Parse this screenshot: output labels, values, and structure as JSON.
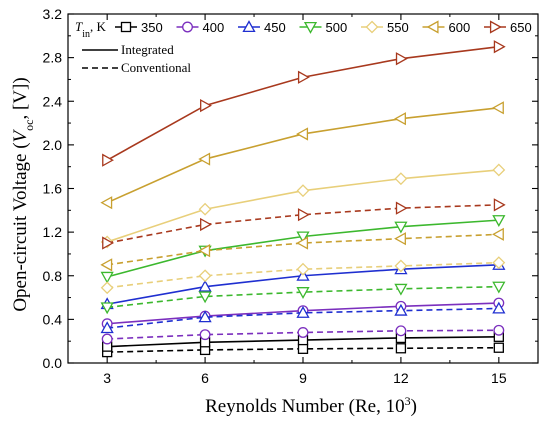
{
  "chart_data": {
    "type": "line",
    "x": [
      3,
      6,
      9,
      12,
      15
    ],
    "x_ticks": [
      "3",
      "6",
      "9",
      "12",
      "15"
    ],
    "y_ticks": [
      "0.0",
      "0.4",
      "0.8",
      "1.2",
      "1.6",
      "2.0",
      "2.4",
      "2.8",
      "3.2"
    ],
    "xlim": [
      1.8,
      16.2
    ],
    "ylim": [
      0,
      3.2
    ],
    "xlabel": {
      "main": "Reynolds Number (Re, 10",
      "sup": "3",
      "end": ")"
    },
    "ylabel": {
      "main": "Open-circuit Voltage (",
      "italic": "V",
      "sub": "oc",
      "end": ", [V])"
    },
    "grid": false,
    "legend_title": {
      "italic": "T",
      "sub": "in",
      "end": ", K"
    },
    "legend_placement": "top",
    "line_styles": [
      {
        "name": "Integrated",
        "dash": "solid"
      },
      {
        "name": "Conventional",
        "dash": "dashed"
      }
    ],
    "series": [
      {
        "name": "350",
        "color": "#000000",
        "marker": "square",
        "integrated": [
          0.15,
          0.19,
          0.21,
          0.23,
          0.24
        ],
        "conventional": [
          0.1,
          0.12,
          0.13,
          0.135,
          0.14
        ]
      },
      {
        "name": "400",
        "color": "#7b2fbe",
        "marker": "circle",
        "integrated": [
          0.36,
          0.43,
          0.48,
          0.52,
          0.55
        ],
        "conventional": [
          0.22,
          0.26,
          0.28,
          0.295,
          0.3
        ]
      },
      {
        "name": "450",
        "color": "#1f2fd0",
        "marker": "triangle-up",
        "integrated": [
          0.54,
          0.7,
          0.8,
          0.86,
          0.9
        ],
        "conventional": [
          0.32,
          0.42,
          0.46,
          0.48,
          0.5
        ]
      },
      {
        "name": "500",
        "color": "#3cb82e",
        "marker": "triangle-down",
        "integrated": [
          0.79,
          1.03,
          1.16,
          1.25,
          1.31
        ],
        "conventional": [
          0.51,
          0.61,
          0.65,
          0.68,
          0.7
        ]
      },
      {
        "name": "550",
        "color": "#e8cf7a",
        "marker": "diamond",
        "integrated": [
          1.11,
          1.41,
          1.58,
          1.69,
          1.77
        ],
        "conventional": [
          0.69,
          0.8,
          0.86,
          0.89,
          0.92
        ]
      },
      {
        "name": "600",
        "color": "#c8a030",
        "marker": "triangle-left",
        "integrated": [
          1.47,
          1.87,
          2.1,
          2.24,
          2.34
        ],
        "conventional": [
          0.9,
          1.03,
          1.1,
          1.14,
          1.18
        ]
      },
      {
        "name": "650",
        "color": "#a8391e",
        "marker": "triangle-right",
        "integrated": [
          1.86,
          2.36,
          2.62,
          2.79,
          2.9
        ],
        "conventional": [
          1.1,
          1.27,
          1.36,
          1.42,
          1.45
        ]
      }
    ]
  }
}
